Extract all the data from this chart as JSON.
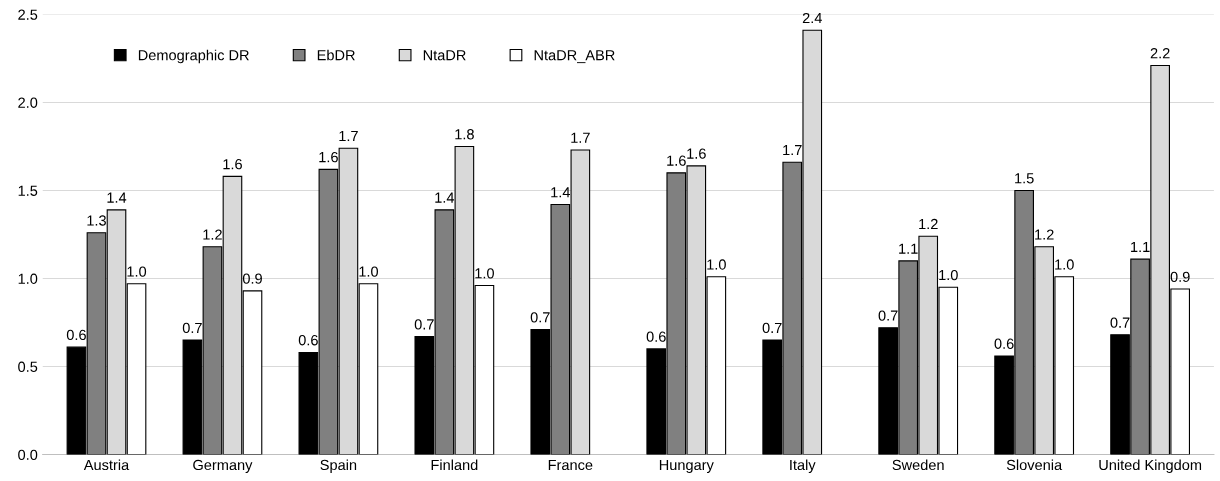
{
  "chart_data": {
    "type": "bar",
    "categories": [
      "Austria",
      "Germany",
      "Spain",
      "Finland",
      "France",
      "Hungary",
      "Italy",
      "Sweden",
      "Slovenia",
      "United Kingdom"
    ],
    "series": [
      {
        "name": "Demographic DR",
        "color": "#000000",
        "values": [
          0.61,
          0.65,
          0.58,
          0.67,
          0.71,
          0.6,
          0.65,
          0.72,
          0.56,
          0.68
        ],
        "value_labels": [
          "0.6",
          "0.7",
          "0.6",
          "0.7",
          "0.7",
          "0.6",
          "0.7",
          "0.7",
          "0.6",
          "0.7"
        ]
      },
      {
        "name": "EbDR",
        "color": "#808080",
        "values": [
          1.26,
          1.18,
          1.62,
          1.39,
          1.42,
          1.6,
          1.66,
          1.1,
          1.5,
          1.11
        ],
        "value_labels": [
          "1.3",
          "1.2",
          "1.6",
          "1.4",
          "1.4",
          "1.6",
          "1.7",
          "1.1",
          "1.5",
          "1.1"
        ]
      },
      {
        "name": "NtaDR",
        "color": "#d9d9d9",
        "values": [
          1.39,
          1.58,
          1.74,
          1.75,
          1.73,
          1.64,
          2.41,
          1.24,
          1.18,
          2.21
        ],
        "value_labels": [
          "1.4",
          "1.6",
          "1.7",
          "1.8",
          "1.7",
          "1.6",
          "2.4",
          "1.2",
          "1.2",
          "2.2"
        ]
      },
      {
        "name": "NtaDR_ABR",
        "color": "#ffffff",
        "values": [
          0.97,
          0.93,
          0.97,
          0.96,
          null,
          1.01,
          null,
          0.95,
          1.01,
          0.94
        ],
        "value_labels": [
          "1.0",
          "0.9",
          "1.0",
          "1.0",
          null,
          "1.0",
          null,
          "1.0",
          "1.0",
          "0.9"
        ]
      }
    ],
    "ylim": [
      0,
      2.5
    ],
    "yticks": [
      {
        "value": 0,
        "label": "0.0"
      },
      {
        "value": 0.5,
        "label": "0.5"
      },
      {
        "value": 1,
        "label": "1.0"
      },
      {
        "value": 1.5,
        "label": "1.5"
      },
      {
        "value": 2,
        "label": "2.0"
      },
      {
        "value": 2.5,
        "label": "2.5"
      }
    ],
    "grid": "y",
    "legend": "top left"
  }
}
